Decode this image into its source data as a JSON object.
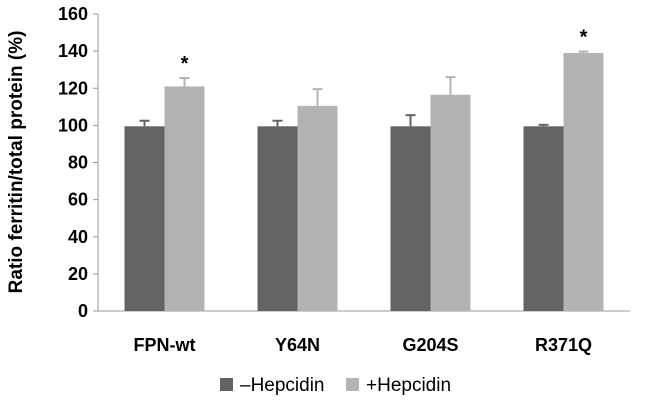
{
  "chart_data": {
    "type": "bar",
    "ylabel": "Ratio ferritin/total protein (%)",
    "xlabel": "",
    "ylim": [
      0,
      160
    ],
    "yticks": [
      0,
      20,
      40,
      60,
      80,
      100,
      120,
      140,
      160
    ],
    "categories": [
      "FPN-wt",
      "Y64N",
      "G204S",
      "R371Q"
    ],
    "series": [
      {
        "name": "–Hepcidin",
        "color": "#636363",
        "values": [
          99.5,
          99.5,
          99.5,
          99.5
        ],
        "errors": [
          3,
          3,
          6,
          0.8
        ]
      },
      {
        "name": "+Hepcidin",
        "color": "#b3b3b3",
        "values": [
          121,
          110.5,
          116.5,
          139
        ],
        "errors": [
          4.5,
          9,
          9.5,
          0.8
        ]
      }
    ],
    "annotations": [
      "*",
      "",
      "",
      "*"
    ],
    "grid": false,
    "legend_position": "bottom"
  }
}
